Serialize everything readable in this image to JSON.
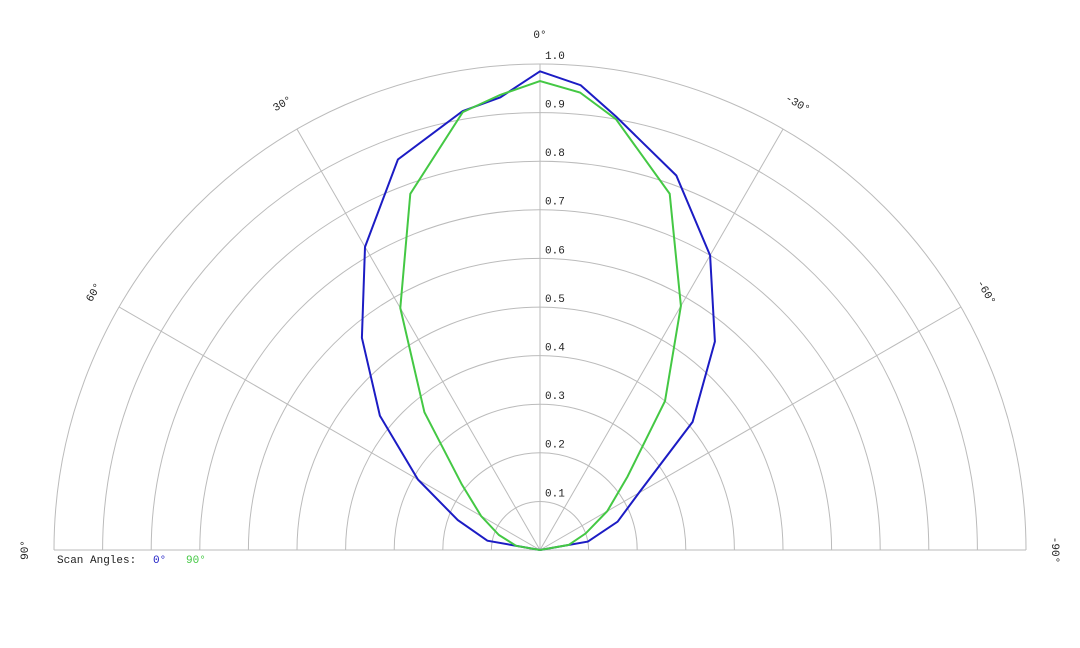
{
  "chart_data": {
    "type": "polar",
    "x": [
      -90,
      -80,
      -70,
      -60,
      -50,
      -40,
      -30,
      -20,
      -10,
      -5,
      0,
      5,
      10,
      20,
      30,
      40,
      50,
      60,
      70,
      80,
      90
    ],
    "series": [
      {
        "name": "0°",
        "color": "#1c1cc4",
        "values": [
          0,
          0.1,
          0.17,
          0.235,
          0.41,
          0.56,
          0.7,
          0.82,
          0.905,
          0.96,
          0.985,
          0.935,
          0.917,
          0.855,
          0.72,
          0.57,
          0.43,
          0.29,
          0.18,
          0.11,
          0
        ]
      },
      {
        "name": "90°",
        "color": "#44c844",
        "values": [
          0,
          0.06,
          0.1,
          0.16,
          0.235,
          0.4,
          0.58,
          0.78,
          0.9,
          0.945,
          0.965,
          0.94,
          0.915,
          0.78,
          0.575,
          0.37,
          0.21,
          0.14,
          0.09,
          0.05,
          0
        ]
      }
    ],
    "legend_title": "Scan Angles:",
    "rlim": [
      0,
      1
    ],
    "rticks": [
      0.1,
      0.2,
      0.3,
      0.4,
      0.5,
      0.6,
      0.7,
      0.8,
      0.9,
      {
        "value": 1,
        "label": "1.0"
      }
    ],
    "thetaticks": [
      {
        "value": 90,
        "label": "90°"
      },
      {
        "value": 60,
        "label": "60°"
      },
      {
        "value": 30,
        "label": "30°"
      },
      {
        "value": 0,
        "label": "0°"
      },
      {
        "value": -30,
        "label": "-30°"
      },
      {
        "value": -60,
        "label": "-60°"
      },
      {
        "value": -90,
        "label": "-90°"
      }
    ],
    "grid": true
  }
}
